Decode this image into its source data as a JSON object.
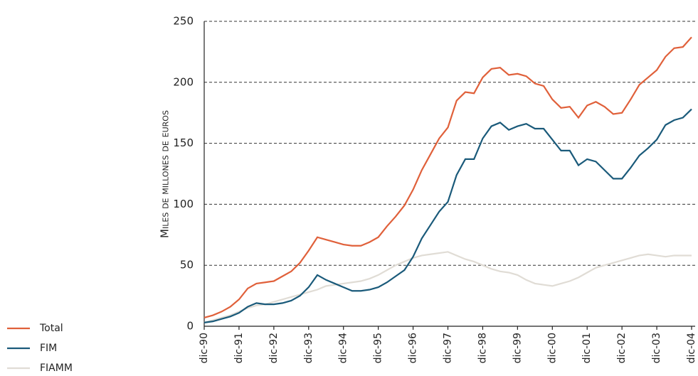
{
  "chart_data": {
    "type": "line",
    "y_label": "Miles de millones de euros",
    "categories": [
      "dic-90",
      null,
      null,
      null,
      "dic-91",
      null,
      null,
      null,
      "dic-92",
      null,
      null,
      null,
      "dic-93",
      null,
      null,
      null,
      "dic-94",
      null,
      null,
      null,
      "dic-95",
      null,
      null,
      null,
      "dic-96",
      null,
      null,
      null,
      "dic-97",
      null,
      null,
      null,
      "dic-98",
      null,
      null,
      null,
      "dic-99",
      null,
      null,
      null,
      "dic-00",
      null,
      null,
      null,
      "dic-01",
      null,
      null,
      null,
      "dic-02",
      null,
      null,
      null,
      "dic-03",
      null,
      null,
      null,
      "dic-04"
    ],
    "series": [
      {
        "name": "Total",
        "color": "#e0603a",
        "values": [
          7,
          9,
          12,
          16,
          22,
          31,
          35,
          36,
          37,
          41,
          45,
          52,
          62,
          73,
          71,
          69,
          67,
          66,
          66,
          69,
          73,
          82,
          90,
          99,
          112,
          128,
          141,
          154,
          163,
          185,
          192,
          191,
          204,
          211,
          212,
          206,
          207,
          205,
          199,
          197,
          186,
          179,
          180,
          171,
          181,
          184,
          180,
          174,
          175,
          186,
          198,
          204,
          210,
          221,
          228,
          229,
          237
        ]
      },
      {
        "name": "FIM",
        "color": "#1a5a7a",
        "values": [
          3,
          4,
          6,
          8,
          11,
          16,
          19,
          18,
          18,
          19,
          21,
          25,
          32,
          42,
          38,
          35,
          32,
          29,
          29,
          30,
          32,
          36,
          41,
          46,
          57,
          72,
          83,
          94,
          102,
          124,
          137,
          137,
          154,
          164,
          167,
          161,
          164,
          166,
          162,
          162,
          153,
          144,
          144,
          132,
          137,
          135,
          128,
          121,
          121,
          130,
          140,
          146,
          153,
          165,
          169,
          171,
          178
        ]
      },
      {
        "name": "FIAMM",
        "color": "#e0dcd5",
        "values": [
          3,
          5,
          7,
          9,
          12,
          15,
          17,
          18,
          20,
          22,
          24,
          26,
          28,
          30,
          33,
          34,
          35,
          36,
          37,
          39,
          42,
          46,
          50,
          53,
          56,
          58,
          59,
          60,
          61,
          58,
          55,
          53,
          50,
          47,
          45,
          44,
          42,
          38,
          35,
          34,
          33,
          35,
          37,
          40,
          44,
          48,
          50,
          52,
          54,
          56,
          58,
          59,
          58,
          57,
          58,
          58,
          58
        ]
      }
    ],
    "ylim": [
      0,
      250
    ],
    "yticks": [
      0,
      50,
      100,
      150,
      200,
      250
    ],
    "grid": true,
    "legend": "bottom-left"
  }
}
